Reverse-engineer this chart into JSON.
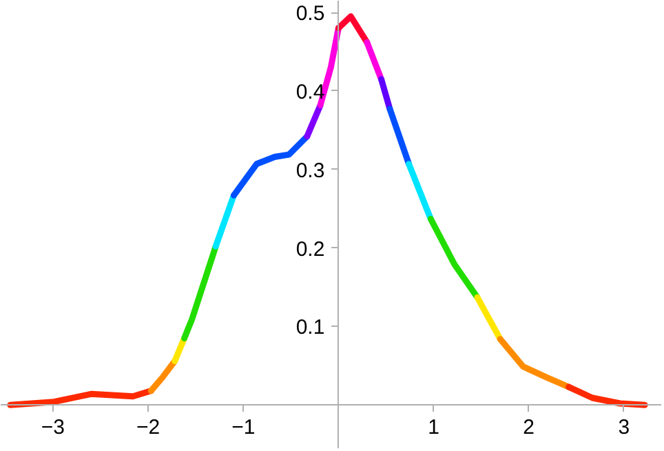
{
  "chart_data": {
    "type": "line",
    "xlim": [
      -3.55,
      3.4
    ],
    "ylim": [
      -0.056,
      0.515
    ],
    "xticks": [
      -3,
      -2,
      -1,
      1,
      2,
      3
    ],
    "yticks": [
      0.1,
      0.2,
      0.3,
      0.4,
      0.5
    ],
    "grid": false,
    "marker": "none",
    "line_style": "solid",
    "series": [
      {
        "color": "#ff2a00",
        "x": [
          -3.45,
          -2.99,
          -2.6,
          -2.16,
          -1.97
        ],
        "values": [
          0,
          0.004,
          0.014,
          0.011,
          0.018
        ]
      },
      {
        "color": "#ff8c00",
        "x": [
          -1.97,
          -1.85,
          -1.72
        ],
        "values": [
          0.018,
          0.035,
          0.056
        ]
      },
      {
        "color": "#ffe600",
        "x": [
          -1.72,
          -1.62
        ],
        "values": [
          0.056,
          0.085
        ]
      },
      {
        "color": "#22dd00",
        "x": [
          -1.62,
          -1.54,
          -1.29
        ],
        "values": [
          0.085,
          0.109,
          0.202
        ]
      },
      {
        "color": "#00e5ff",
        "x": [
          -1.29,
          -1.1
        ],
        "values": [
          0.202,
          0.267
        ]
      },
      {
        "color": "#0050ff",
        "x": [
          -1.1,
          -0.86,
          -0.67,
          -0.52,
          -0.33
        ],
        "values": [
          0.267,
          0.307,
          0.316,
          0.319,
          0.342
        ]
      },
      {
        "color": "#8000ff",
        "x": [
          -0.33,
          -0.19
        ],
        "values": [
          0.342,
          0.382
        ]
      },
      {
        "color": "#ff00e0",
        "x": [
          -0.19,
          -0.08,
          0
        ],
        "values": [
          0.382,
          0.43,
          0.48
        ]
      },
      {
        "color": "#ff0030",
        "x": [
          0,
          0.13,
          0.3
        ],
        "values": [
          0.48,
          0.495,
          0.462
        ]
      },
      {
        "color": "#ff00e0",
        "x": [
          0.3,
          0.45
        ],
        "values": [
          0.462,
          0.415
        ]
      },
      {
        "color": "#6000ff",
        "x": [
          0.45,
          0.54
        ],
        "values": [
          0.415,
          0.377
        ]
      },
      {
        "color": "#0050ff",
        "x": [
          0.54,
          0.74
        ],
        "values": [
          0.377,
          0.307
        ]
      },
      {
        "color": "#00e5ff",
        "x": [
          0.74,
          0.97
        ],
        "values": [
          0.307,
          0.237
        ]
      },
      {
        "color": "#22dd00",
        "x": [
          0.97,
          1.22,
          1.46
        ],
        "values": [
          0.237,
          0.179,
          0.137
        ]
      },
      {
        "color": "#ffe600",
        "x": [
          1.46,
          1.7
        ],
        "values": [
          0.137,
          0.084
        ]
      },
      {
        "color": "#ff8c00",
        "x": [
          1.7,
          1.94,
          2.19,
          2.42
        ],
        "values": [
          0.084,
          0.049,
          0.035,
          0.023
        ]
      },
      {
        "color": "#ff2a00",
        "x": [
          2.42,
          2.67,
          2.96,
          3.22
        ],
        "values": [
          0.023,
          0.009,
          0.002,
          0
        ]
      }
    ]
  }
}
